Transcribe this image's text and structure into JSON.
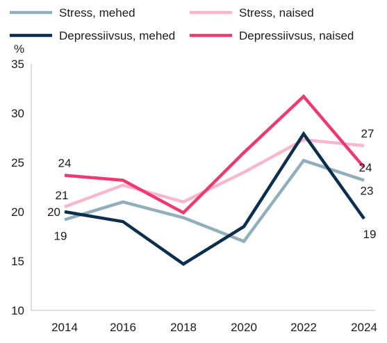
{
  "chart_data": {
    "type": "line",
    "ylabel": "%",
    "ylim": [
      10,
      35
    ],
    "yticks": [
      10,
      15,
      20,
      25,
      30,
      35
    ],
    "x": [
      "2014",
      "2016",
      "2018",
      "2020",
      "2022",
      "2024"
    ],
    "legend_placement": "top",
    "series": [
      {
        "name": "Stress, mehed",
        "color": "#91aebb",
        "values": [
          19.2,
          21.0,
          19.4,
          17.0,
          25.2,
          23.2
        ],
        "labels": [
          {
            "index": 0,
            "text": "19"
          },
          {
            "index": 5,
            "text": "23"
          }
        ]
      },
      {
        "name": "Stress, naised",
        "color": "#f8b7cd",
        "values": [
          20.5,
          22.7,
          21.0,
          24.0,
          27.3,
          26.7
        ],
        "labels": [
          {
            "index": 0,
            "text": "21"
          },
          {
            "index": 5,
            "text": "27"
          }
        ]
      },
      {
        "name": "Depressiivsus, mehed",
        "color": "#0a2e4b",
        "values": [
          20.0,
          19.0,
          14.7,
          18.5,
          27.9,
          19.3
        ],
        "labels": [
          {
            "index": 0,
            "text": "20"
          },
          {
            "index": 5,
            "text": "19"
          }
        ]
      },
      {
        "name": "Depressiivsus, naised",
        "color": "#ee3a6e",
        "values": [
          23.7,
          23.2,
          19.9,
          26.0,
          31.7,
          24.5
        ],
        "labels": [
          {
            "index": 0,
            "text": "24"
          },
          {
            "index": 5,
            "text": "24"
          }
        ]
      }
    ]
  }
}
